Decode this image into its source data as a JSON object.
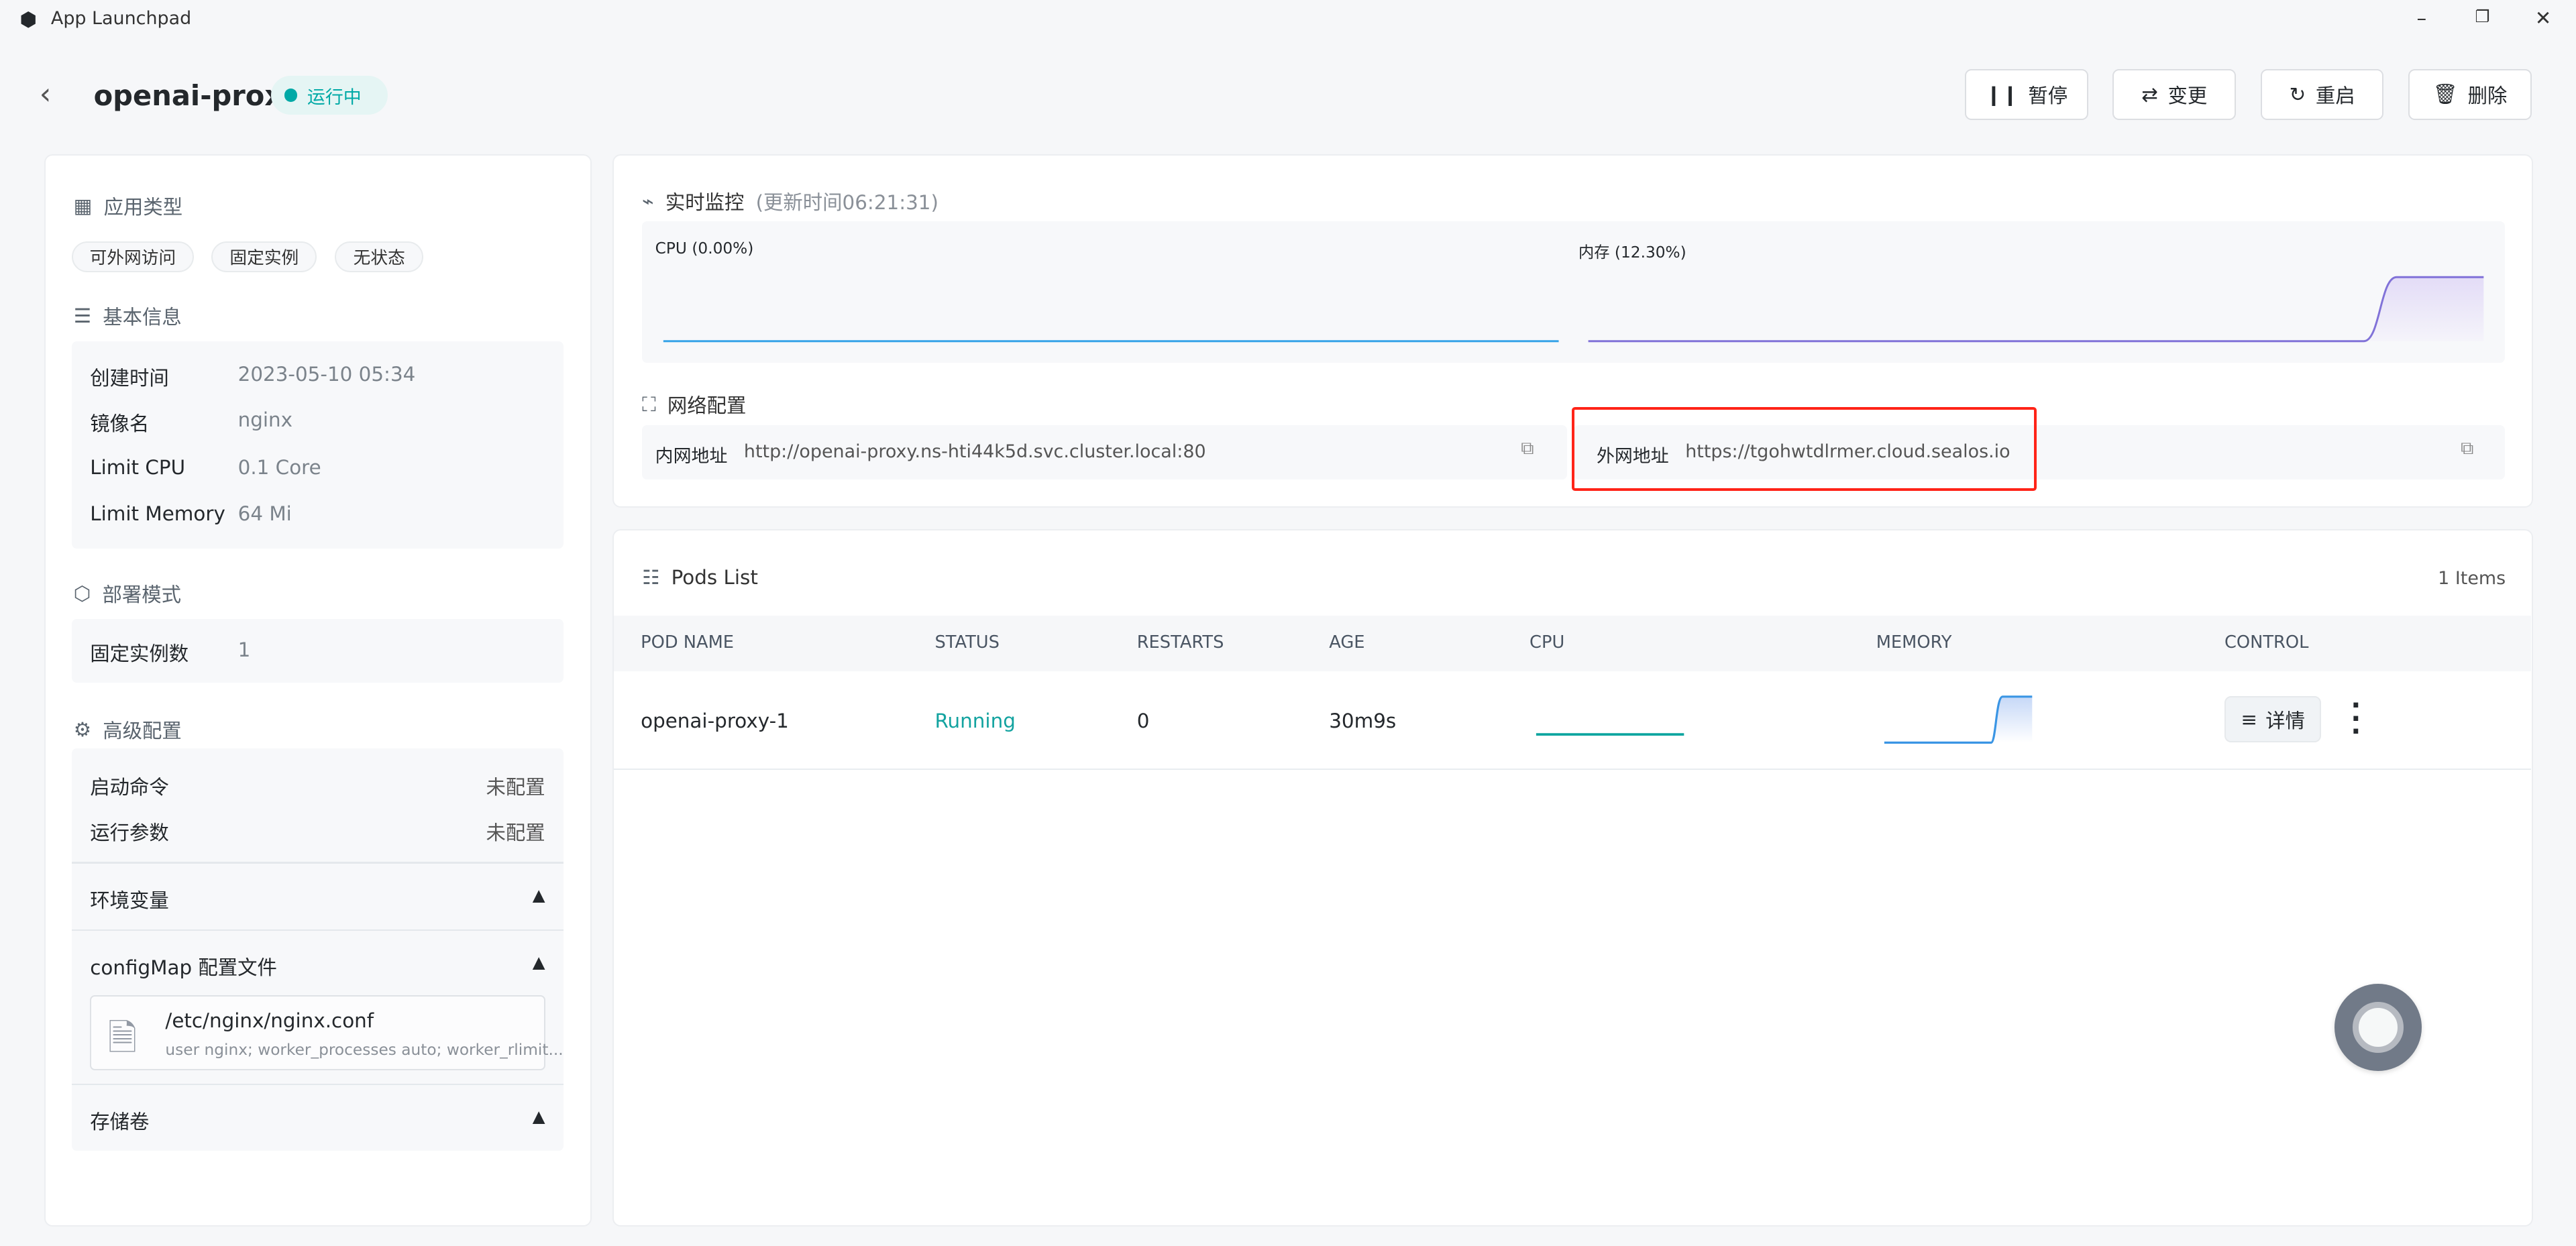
{
  "window": {
    "title": "App Launchpad",
    "controls": [
      "minimize",
      "maximize",
      "close"
    ]
  },
  "header": {
    "app_name": "openai-proxy",
    "status": "运行中",
    "status_color": "#00a9a6",
    "buttons": {
      "pause": "暂停",
      "change": "变更",
      "restart": "重启",
      "delete": "删除"
    }
  },
  "left": {
    "app_type": {
      "title": "应用类型",
      "tags": [
        "可外网访问",
        "固定实例",
        "无状态"
      ]
    },
    "basic": {
      "title": "基本信息",
      "rows": [
        {
          "label": "创建时间",
          "value": "2023-05-10 05:34"
        },
        {
          "label": "镜像名",
          "value": "nginx"
        },
        {
          "label": "Limit CPU",
          "value": "0.1 Core"
        },
        {
          "label": "Limit Memory",
          "value": "64 Mi"
        }
      ]
    },
    "deploy": {
      "title": "部署模式",
      "label": "固定实例数",
      "value": "1"
    },
    "advanced": {
      "title": "高级配置",
      "start_cmd": {
        "label": "启动命令",
        "value": "未配置"
      },
      "run_args": {
        "label": "运行参数",
        "value": "未配置"
      },
      "env": "环境变量",
      "configmap": {
        "label": "configMap 配置文件",
        "path": "/etc/nginx/nginx.conf",
        "preview": "user nginx; worker_processes auto; worker_rlimit..."
      },
      "storage": "存储卷"
    }
  },
  "monitor": {
    "title": "实时监控",
    "updated": "(更新时间06:21:31)",
    "cpu": {
      "label": "CPU",
      "percent": "(0.00%)",
      "color": "#36a3e8"
    },
    "memory": {
      "label": "内存",
      "percent": "(12.30%)",
      "color": "#8172d8"
    }
  },
  "network": {
    "title": "网络配置",
    "internal": {
      "label": "内网地址",
      "value": "http://openai-proxy.ns-hti44k5d.svc.cluster.local:80"
    },
    "external": {
      "label": "外网地址",
      "value": "https://tgohwtdlrmer.cloud.sealos.io"
    }
  },
  "pods": {
    "title": "Pods List",
    "count": "1 Items",
    "columns": [
      "POD NAME",
      "STATUS",
      "RESTARTS",
      "AGE",
      "CPU",
      "MEMORY",
      "CONTROL"
    ],
    "rows": [
      {
        "name": "openai-proxy-1",
        "status": "Running",
        "restarts": "0",
        "age": "30m9s",
        "detail": "详情"
      }
    ]
  }
}
